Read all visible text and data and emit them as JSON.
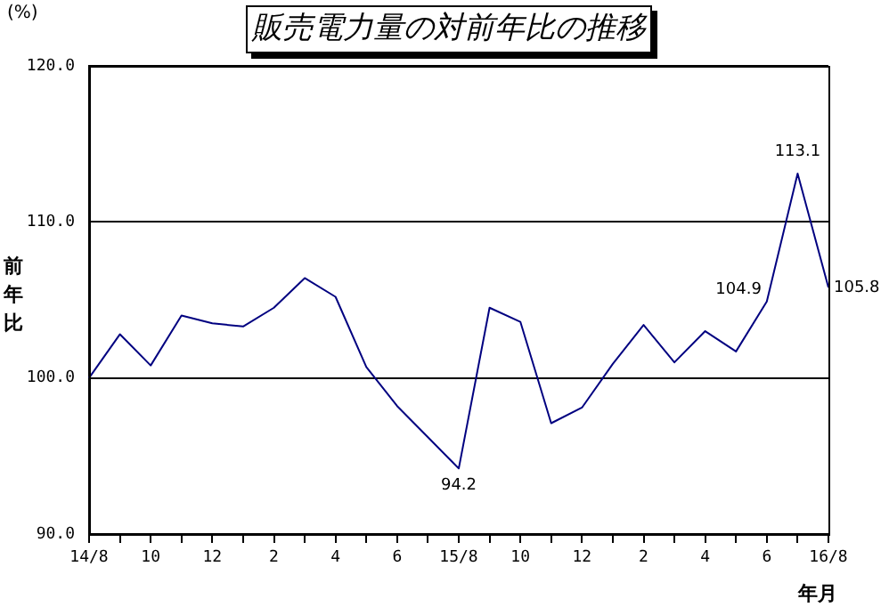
{
  "chart_data": {
    "type": "line",
    "title": "販売電力量の対前年比の推移",
    "ylabel": "前年比",
    "xlabel": "年月",
    "annotations": [
      "(%)"
    ],
    "categories": [
      "14/8",
      null,
      "10",
      null,
      "12",
      null,
      "2",
      null,
      "4",
      null,
      "6",
      null,
      "15/8",
      null,
      "10",
      null,
      "12",
      null,
      "2",
      null,
      "4",
      null,
      "6",
      null,
      "16/8"
    ],
    "series": [
      {
        "color": "#000080",
        "values": [
          100.0,
          102.8,
          100.8,
          104.0,
          103.5,
          103.3,
          104.5,
          106.4,
          105.2,
          100.7,
          98.2,
          96.2,
          94.2,
          104.5,
          103.6,
          97.1,
          98.1,
          100.9,
          103.4,
          101.0,
          103.0,
          101.7,
          104.9,
          113.1,
          105.8
        ],
        "value_labels": [
          null,
          null,
          null,
          null,
          null,
          null,
          null,
          null,
          null,
          null,
          null,
          null,
          "94.2",
          null,
          null,
          null,
          null,
          null,
          null,
          null,
          null,
          null,
          "104.9",
          "113.1",
          "105.8"
        ]
      }
    ],
    "ylim": [
      90,
      120
    ],
    "yticks": [
      {
        "value": 90,
        "label": "90.0"
      },
      {
        "value": 100,
        "label": "100.0"
      },
      {
        "value": 110,
        "label": "110.0"
      },
      {
        "value": 120,
        "label": "120.0"
      }
    ],
    "grid": "y",
    "legend": false,
    "marker": "none",
    "line_style": "solid"
  }
}
